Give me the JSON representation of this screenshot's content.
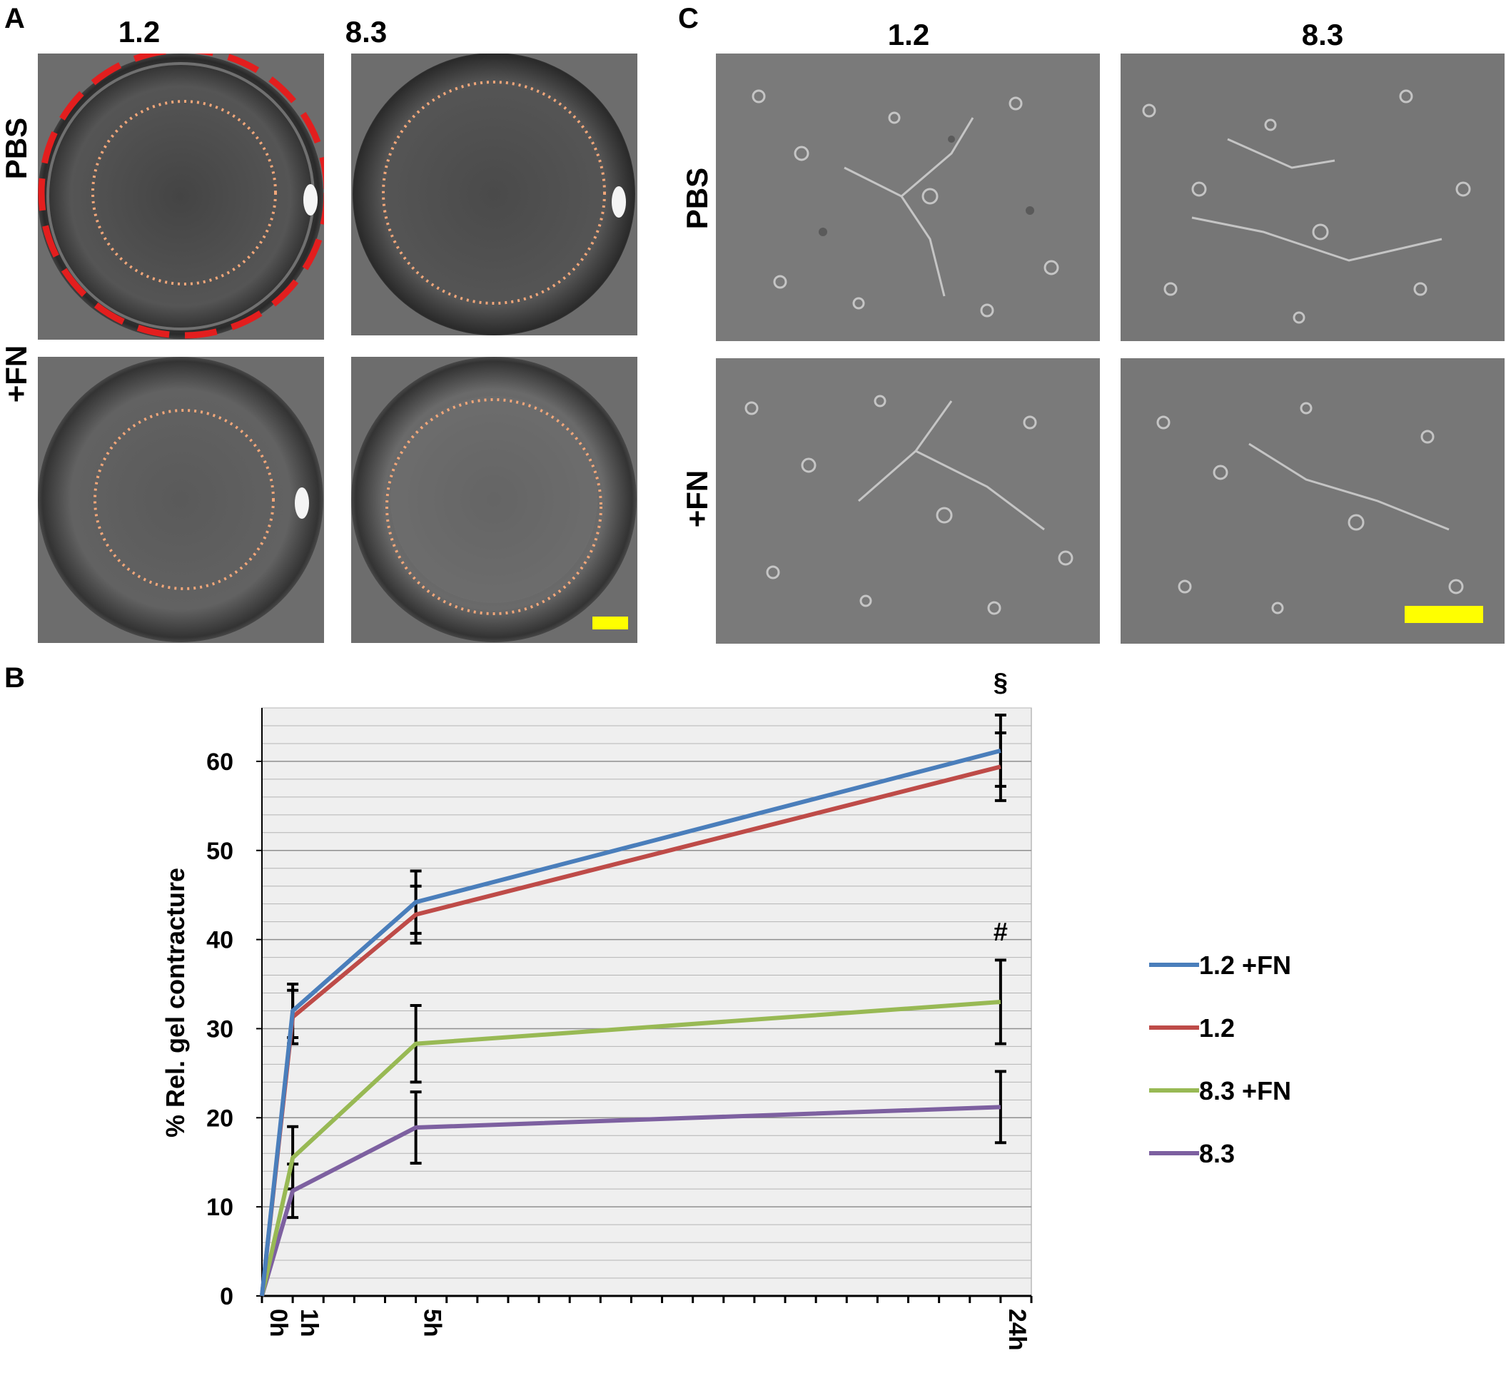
{
  "panels": {
    "a": {
      "letter": "A",
      "columns": [
        "1.2",
        "8.3"
      ],
      "rows": [
        "PBS",
        "+FN"
      ]
    },
    "b": {
      "letter": "B"
    },
    "c": {
      "letter": "C",
      "columns": [
        "1.2",
        "8.3"
      ],
      "rows": [
        "PBS",
        "+FN"
      ]
    }
  },
  "colors": {
    "scale_bar": "#ffff00",
    "outer_gel_ring": "#e31e1e",
    "inner_gel_ring": "#f2a77a"
  },
  "chart_data": {
    "type": "line",
    "ylabel": "% Rel. gel contracture",
    "xlabel": "",
    "x": [
      0,
      1,
      5,
      24
    ],
    "x_tick_labels": [
      "0h",
      "1h",
      "5h",
      "24h"
    ],
    "xlim": [
      0,
      25
    ],
    "ylim": [
      0,
      66
    ],
    "y_ticks": [
      0,
      10,
      20,
      30,
      40,
      50,
      60
    ],
    "grid": true,
    "legend": "right",
    "series": [
      {
        "name": "1.2 +FN",
        "color": "#4a7ebb",
        "values": [
          0,
          32,
          44.2,
          61.2
        ],
        "error": [
          0,
          3,
          3.5,
          4
        ]
      },
      {
        "name": "1.2",
        "color": "#be4b48",
        "values": [
          0,
          31.3,
          42.8,
          59.4
        ],
        "error": [
          0,
          3,
          3.2,
          3.8
        ]
      },
      {
        "name": "8.3 +FN",
        "color": "#98b954",
        "values": [
          0,
          15.5,
          28.3,
          33
        ],
        "error": [
          0,
          3.5,
          4.3,
          4.7
        ]
      },
      {
        "name": "8.3",
        "color": "#7d60a0",
        "values": [
          0,
          11.8,
          18.9,
          21.2
        ],
        "error": [
          0,
          3,
          4,
          4
        ]
      }
    ],
    "annotations": [
      {
        "text": "§",
        "x": 24,
        "y": 69
      },
      {
        "text": "#",
        "x": 24,
        "y": 41
      }
    ]
  }
}
